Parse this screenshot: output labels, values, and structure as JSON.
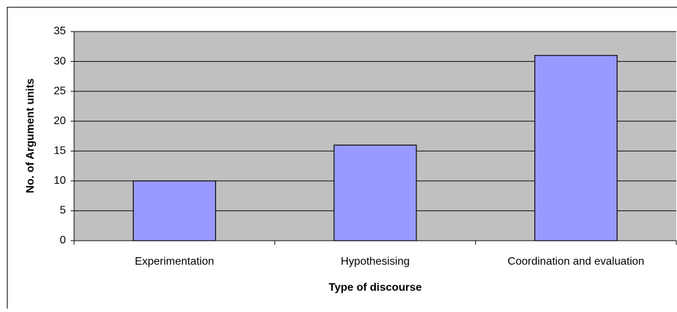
{
  "chart_data": {
    "type": "bar",
    "categories": [
      "Experimentation",
      "Hypothesising",
      "Coordination and evaluation"
    ],
    "values": [
      10,
      16,
      31
    ],
    "color": "#9999ff",
    "xlabel": "Type of discourse",
    "ylabel": "No. of Argument units",
    "ylim": [
      0,
      35
    ],
    "yticks": [
      0,
      5,
      10,
      15,
      20,
      25,
      30,
      35
    ],
    "grid": true
  }
}
